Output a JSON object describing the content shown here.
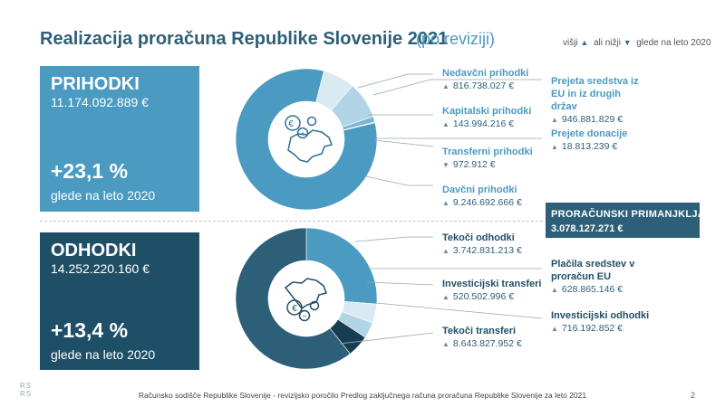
{
  "title": "Realizacija proračuna Republike Slovenije 2021",
  "subtitle": "(po reviziji)",
  "compare": {
    "higher": "višji",
    "lower": "ali nižji",
    "vs": "glede na leto 2020"
  },
  "revenue_box": {
    "title": "PRIHODKI",
    "amount": "11.174.092.889 €",
    "change": "+23,1 %",
    "note": "glede na leto 2020"
  },
  "expenditure_box": {
    "title": "ODHODKI",
    "amount": "14.252.220.160 €",
    "change": "+13,4 %",
    "note": "glede na leto 2020"
  },
  "deficit": {
    "label": "PRORAČUNSKI PRIMANJKLJAJ",
    "value": "3.078.127.271 €"
  },
  "footer": "Računsko sodišče Republike Slovenije - revizijsko poročilo Predlog zaključnega računa proračuna Republike Slovenije za leto 2021",
  "page_number": "2",
  "logo": [
    "RS",
    "RS"
  ],
  "chart_data": [
    {
      "type": "pie",
      "title": "PRIHODKI",
      "slices": [
        {
          "name": "Davčni prihodki",
          "value": 9246692666,
          "display": "9.246.692.666 €",
          "trend": "up",
          "color": "#4a9ac1"
        },
        {
          "name": "Nedavčni prihodki",
          "value": 816738027,
          "display": "816.738.027 €",
          "trend": "up",
          "color": "#d9eaf3"
        },
        {
          "name": "Prejeta sredstva iz EU in iz drugih držav",
          "value": 946881829,
          "display": "946.881.829 €",
          "trend": "up",
          "color": "#b3d3e6"
        },
        {
          "name": "Kapitalski prihodki",
          "value": 143994216,
          "display": "143.994.216 €",
          "trend": "up",
          "color": "#7fb6d4"
        },
        {
          "name": "Prejete donacije",
          "value": 18813239,
          "display": "18.813.239 €",
          "trend": "up",
          "color": "#2d6f92"
        },
        {
          "name": "Transferni prihodki",
          "value": 972912,
          "display": "972.912 €",
          "trend": "down",
          "color": "#1f4f66"
        }
      ]
    },
    {
      "type": "pie",
      "title": "ODHODKI",
      "slices": [
        {
          "name": "Tekoči transferi",
          "value": 8643827952,
          "display": "8.643.827.952 €",
          "trend": "up",
          "color": "#2d5f78"
        },
        {
          "name": "Tekoči odhodki",
          "value": 3742831213,
          "display": "3.742.831.213 €",
          "trend": "up",
          "color": "#4a9ac1"
        },
        {
          "name": "Plačila sredstev v proračun EU",
          "value": 628865146,
          "display": "628.865.146 €",
          "trend": "up",
          "color": "#d9eaf3"
        },
        {
          "name": "Investicijski transferi",
          "value": 520502996,
          "display": "520.502.996 €",
          "trend": "up",
          "color": "#b3d3e6"
        },
        {
          "name": "Investicijski odhodki",
          "value": 716192852,
          "display": "716.192.852 €",
          "trend": "up",
          "color": "#163e52"
        }
      ]
    }
  ],
  "icons": {
    "revenue": "euro-plus-icon",
    "expenditure": "euro-minus-icon"
  }
}
